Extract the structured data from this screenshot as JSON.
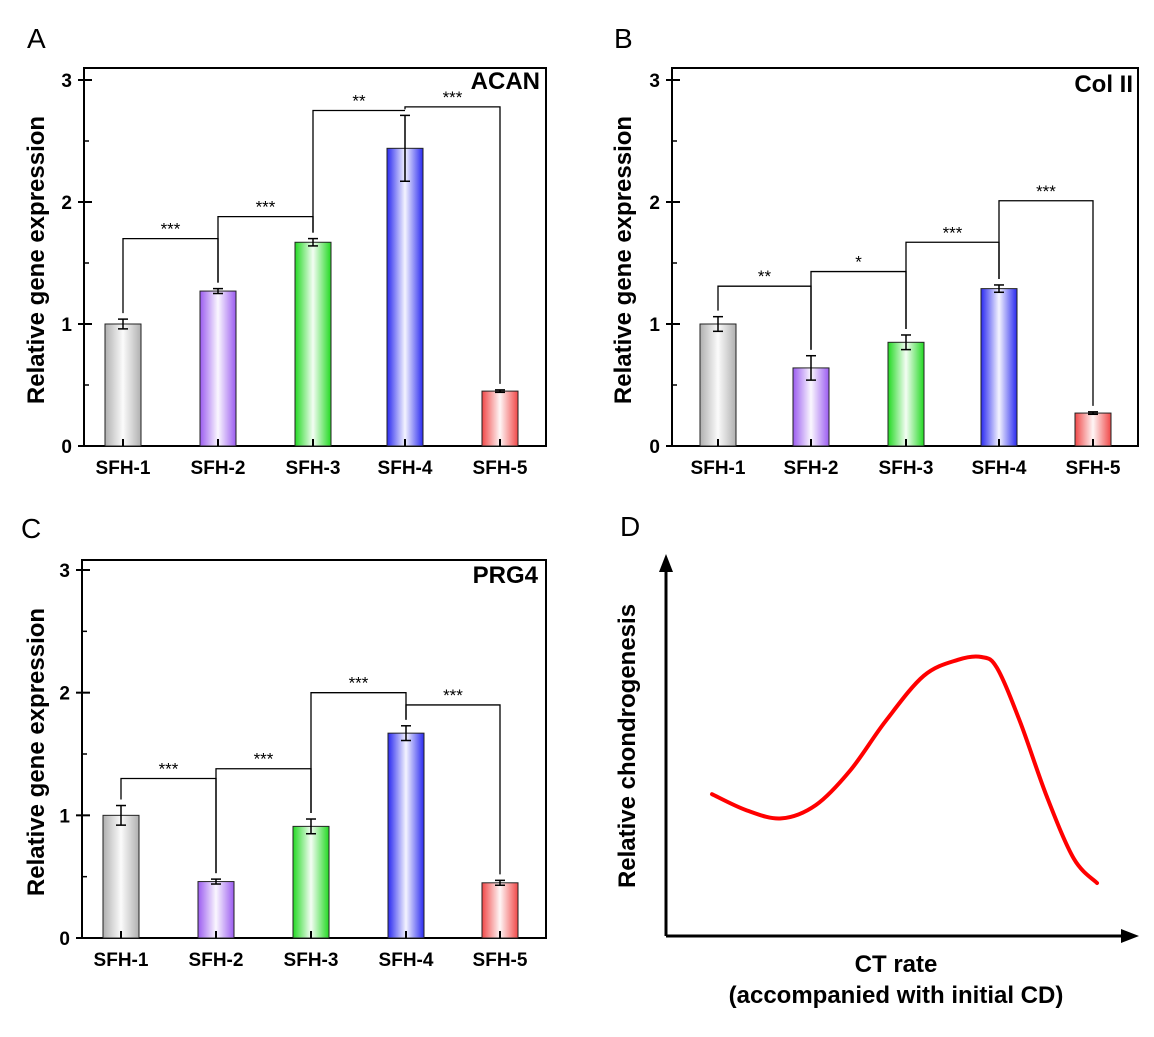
{
  "chart_data": [
    {
      "panel_label": "A",
      "type": "bar",
      "gene": "ACAN",
      "ylabel": "Relative gene expression",
      "ylim": [
        0,
        3
      ],
      "yticks": [
        0,
        1,
        2,
        3
      ],
      "categories": [
        "SFH-1",
        "SFH-2",
        "SFH-3",
        "SFH-4",
        "SFH-5"
      ],
      "values": [
        1.0,
        1.27,
        1.67,
        2.44,
        0.45
      ],
      "errors": [
        0.04,
        0.02,
        0.03,
        0.27,
        0.01
      ],
      "colors": [
        "#b0b0b0",
        "#9b5cf0",
        "#23d923",
        "#2a2af0",
        "#f04848"
      ],
      "significance": [
        {
          "from": 0,
          "to": 1,
          "level": 1.7,
          "label": "***"
        },
        {
          "from": 1,
          "to": 2,
          "level": 1.88,
          "label": "***"
        },
        {
          "from": 2,
          "to": 3,
          "level": 2.75,
          "label": "**"
        },
        {
          "from": 3,
          "to": 4,
          "level": 2.78,
          "label": "***"
        }
      ]
    },
    {
      "panel_label": "B",
      "type": "bar",
      "gene": "Col II",
      "ylabel": "Relative gene expression",
      "ylim": [
        0,
        3
      ],
      "yticks": [
        0,
        1,
        2,
        3
      ],
      "categories": [
        "SFH-1",
        "SFH-2",
        "SFH-3",
        "SFH-4",
        "SFH-5"
      ],
      "values": [
        1.0,
        0.64,
        0.85,
        1.29,
        0.27
      ],
      "errors": [
        0.06,
        0.1,
        0.06,
        0.03,
        0.01
      ],
      "colors": [
        "#b0b0b0",
        "#9b5cf0",
        "#23d923",
        "#2a2af0",
        "#f04848"
      ],
      "significance": [
        {
          "from": 0,
          "to": 1,
          "level": 1.31,
          "label": "**"
        },
        {
          "from": 1,
          "to": 2,
          "level": 1.43,
          "label": "*"
        },
        {
          "from": 2,
          "to": 3,
          "level": 1.67,
          "label": "***"
        },
        {
          "from": 3,
          "to": 4,
          "level": 2.01,
          "label": "***"
        }
      ]
    },
    {
      "panel_label": "C",
      "type": "bar",
      "gene": "PRG4",
      "ylabel": "Relative gene expression",
      "ylim": [
        0,
        3
      ],
      "yticks": [
        0,
        1,
        2,
        3
      ],
      "categories": [
        "SFH-1",
        "SFH-2",
        "SFH-3",
        "SFH-4",
        "SFH-5"
      ],
      "values": [
        1.0,
        0.46,
        0.91,
        1.67,
        0.45
      ],
      "errors": [
        0.08,
        0.02,
        0.06,
        0.06,
        0.02
      ],
      "colors": [
        "#b0b0b0",
        "#9b5cf0",
        "#23d923",
        "#2a2af0",
        "#f04848"
      ],
      "significance": [
        {
          "from": 0,
          "to": 1,
          "level": 1.3,
          "label": "***"
        },
        {
          "from": 1,
          "to": 2,
          "level": 1.38,
          "label": "***"
        },
        {
          "from": 2,
          "to": 3,
          "level": 2.0,
          "label": "***"
        },
        {
          "from": 3,
          "to": 4,
          "level": 1.9,
          "label": "***"
        }
      ]
    },
    {
      "panel_label": "D",
      "type": "line",
      "xlabel_line1": "CT rate",
      "xlabel_line2": "(accompanied with initial CD)",
      "ylabel": "Relative chondrogenesis",
      "x": [
        0.0,
        0.09,
        0.18,
        0.27,
        0.36,
        0.45,
        0.55,
        0.64,
        0.7,
        0.74,
        0.8,
        0.87,
        0.94,
        1.0
      ],
      "y": [
        0.49,
        0.43,
        0.4,
        0.45,
        0.58,
        0.76,
        0.93,
        0.99,
        1.0,
        0.96,
        0.76,
        0.48,
        0.25,
        0.16
      ],
      "line_color": "#ff0000"
    }
  ]
}
